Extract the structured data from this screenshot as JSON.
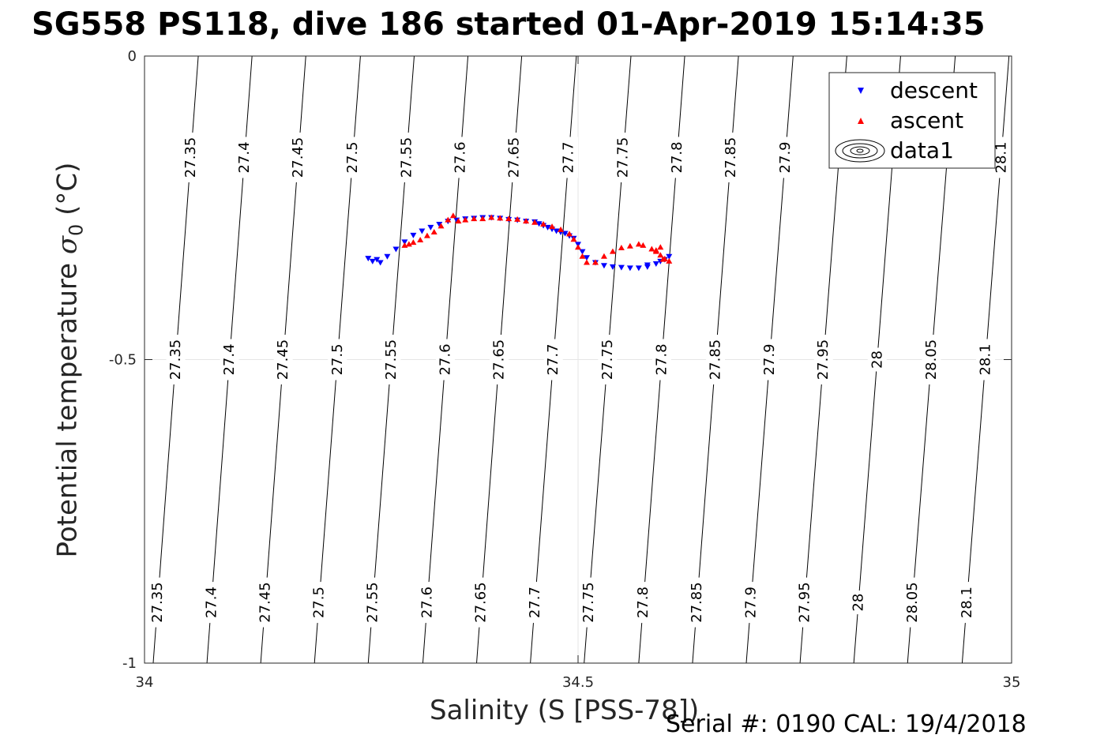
{
  "title": "SG558 PS118, dive 186 started 01-Apr-2019 15:14:35",
  "footer": "Serial #: 0190  CAL: 19/4/2018",
  "colors": {
    "descent": "#0000ff",
    "ascent": "#ff0000",
    "contour": "#000000",
    "grid": "#e6e6e6"
  },
  "chart_data": {
    "type": "scatter",
    "xlabel": "Salinity (S [PSS-78])",
    "ylabel_text": "Potential temperature",
    "ylabel_symbol": "σ",
    "ylabel_subscript": "0",
    "ylabel_unit": "(°C)",
    "xlim": [
      34,
      35
    ],
    "ylim": [
      -1,
      0
    ],
    "y_reversed": true,
    "xticks": [
      "34",
      "34.5",
      "35"
    ],
    "xtick_values": [
      34,
      34.5,
      35
    ],
    "yticks": [
      "0",
      "-0.5",
      "-1"
    ],
    "ytick_values": [
      0,
      -0.5,
      -1
    ],
    "grid": true,
    "legend": {
      "placement": "top-right",
      "entries": [
        "descent",
        "ascent",
        "data1"
      ]
    },
    "density_contours": {
      "levels": [
        27.35,
        27.4,
        27.45,
        27.5,
        27.55,
        27.6,
        27.65,
        27.7,
        27.75,
        27.8,
        27.85,
        27.9,
        27.95,
        28.0,
        28.05,
        28.1
      ],
      "labels_top": [
        "27.35",
        "27.4",
        "27.45",
        "27.5",
        "27.55",
        "27.6",
        "27.65",
        "27.7",
        "27.75",
        "27.8",
        "27.85",
        "27.9",
        "",
        "",
        "",
        "28.1"
      ],
      "labels_mid": [
        "27.35",
        "27.4",
        "27.45",
        "27.5",
        "27.55",
        "27.6",
        "27.65",
        "27.7",
        "27.75",
        "27.8",
        "27.85",
        "27.9",
        "27.95",
        "28",
        "28.05",
        "28.1"
      ],
      "labels_bottom": [
        "27.35",
        "27.4",
        "27.45",
        "27.5",
        "27.55",
        "27.6",
        "27.65",
        "27.7",
        "27.75",
        "27.8",
        "27.85",
        "27.9",
        "27.95",
        "28",
        "28.05",
        "28.1"
      ],
      "x_at_top": [
        34.062,
        34.124,
        34.186,
        34.249,
        34.311,
        34.373,
        34.435,
        34.498,
        34.561,
        34.623,
        34.685,
        34.748,
        34.81,
        34.872,
        34.935,
        34.997
      ],
      "x_at_bottom": [
        34.01,
        34.072,
        34.134,
        34.196,
        34.258,
        34.321,
        34.383,
        34.445,
        34.507,
        34.57,
        34.632,
        34.694,
        34.756,
        34.818,
        34.88,
        34.943
      ]
    },
    "series": [
      {
        "name": "descent",
        "marker": "triangle-down",
        "x": [
          34.258,
          34.263,
          34.268,
          34.272,
          34.28,
          34.29,
          34.3,
          34.31,
          34.32,
          34.33,
          34.34,
          34.35,
          34.36,
          34.37,
          34.38,
          34.39,
          34.4,
          34.41,
          34.42,
          34.43,
          34.44,
          34.45,
          34.455,
          34.46,
          34.465,
          34.47,
          34.475,
          34.48,
          34.485,
          34.49,
          34.495,
          34.5,
          34.505,
          34.51,
          34.52,
          34.53,
          34.54,
          34.55,
          34.56,
          34.57,
          34.58,
          34.59,
          34.595,
          34.6,
          34.605,
          34.58
        ],
        "y": [
          -0.333,
          -0.338,
          -0.335,
          -0.34,
          -0.33,
          -0.318,
          -0.306,
          -0.295,
          -0.288,
          -0.282,
          -0.277,
          -0.272,
          -0.27,
          -0.268,
          -0.267,
          -0.266,
          -0.266,
          -0.267,
          -0.269,
          -0.27,
          -0.272,
          -0.273,
          -0.276,
          -0.279,
          -0.282,
          -0.285,
          -0.288,
          -0.29,
          -0.292,
          -0.296,
          -0.3,
          -0.31,
          -0.322,
          -0.332,
          -0.34,
          -0.345,
          -0.347,
          -0.348,
          -0.349,
          -0.349,
          -0.347,
          -0.342,
          -0.338,
          -0.335,
          -0.33,
          -0.344
        ]
      },
      {
        "name": "ascent",
        "marker": "triangle-up",
        "x": [
          34.3,
          34.305,
          34.31,
          34.318,
          34.326,
          34.334,
          34.342,
          34.35,
          34.356,
          34.362,
          34.37,
          34.38,
          34.39,
          34.4,
          34.41,
          34.42,
          34.43,
          34.44,
          34.45,
          34.46,
          34.47,
          34.48,
          34.49,
          34.495,
          34.5,
          34.505,
          34.51,
          34.52,
          34.53,
          34.54,
          34.55,
          34.56,
          34.57,
          34.575,
          34.585,
          34.59,
          34.595,
          34.6,
          34.605,
          34.598,
          34.59,
          34.595
        ],
        "y": [
          -0.312,
          -0.31,
          -0.307,
          -0.303,
          -0.296,
          -0.29,
          -0.28,
          -0.27,
          -0.263,
          -0.272,
          -0.27,
          -0.268,
          -0.268,
          -0.266,
          -0.267,
          -0.268,
          -0.269,
          -0.272,
          -0.274,
          -0.277,
          -0.281,
          -0.286,
          -0.293,
          -0.302,
          -0.315,
          -0.33,
          -0.34,
          -0.34,
          -0.33,
          -0.322,
          -0.316,
          -0.313,
          -0.31,
          -0.312,
          -0.318,
          -0.32,
          -0.328,
          -0.334,
          -0.338,
          -0.335,
          -0.322,
          -0.315
        ]
      }
    ]
  }
}
